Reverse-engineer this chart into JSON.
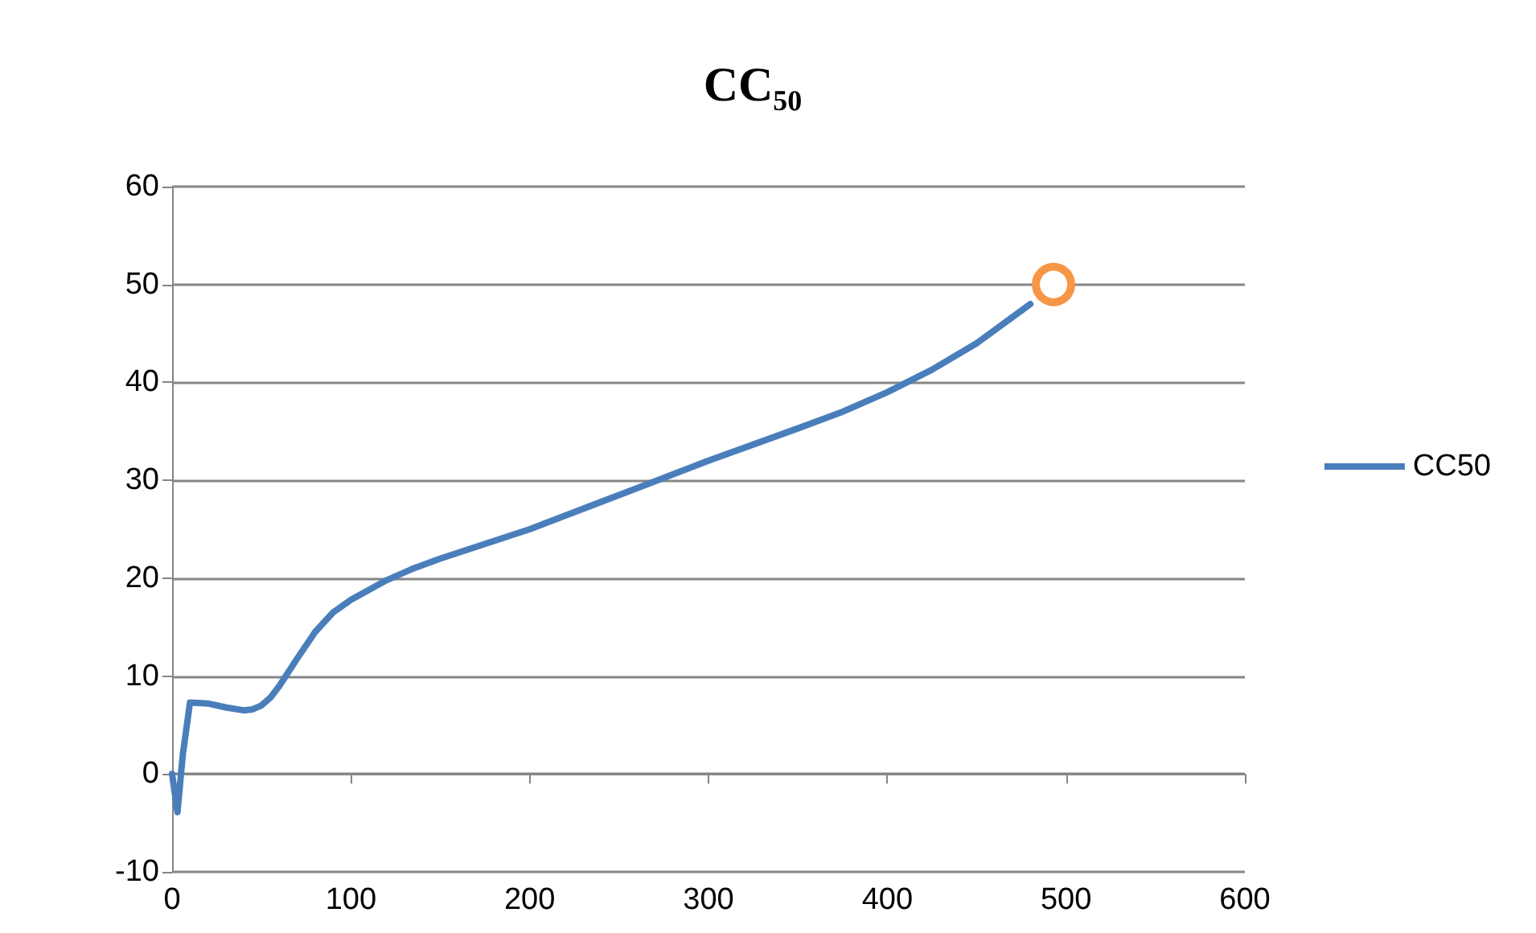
{
  "chart_data": {
    "type": "line",
    "title": "CC₅₀",
    "xlim": [
      0,
      600
    ],
    "xticks": [
      0,
      100,
      200,
      300,
      400,
      500,
      600
    ],
    "ylim": [
      -10,
      60
    ],
    "yticks": [
      -10,
      0,
      10,
      20,
      30,
      40,
      50,
      60
    ],
    "grid": "y",
    "legend": "right",
    "marker": "none",
    "line_style": "solid",
    "series": [
      {
        "name": "CC50",
        "color": "#4a7ebb",
        "x": [
          0,
          3,
          6,
          10,
          20,
          30,
          40,
          45,
          50,
          55,
          60,
          70,
          80,
          90,
          100,
          110,
          120,
          135,
          150,
          175,
          200,
          250,
          300,
          350,
          375,
          400,
          425,
          450,
          480
        ],
        "values": [
          0,
          -3.9,
          2,
          7.3,
          7.2,
          6.8,
          6.5,
          6.6,
          7.0,
          7.8,
          9.0,
          11.8,
          14.5,
          16.5,
          17.8,
          18.8,
          19.8,
          21.0,
          22.0,
          23.5,
          25.0,
          28.5,
          32.0,
          35.3,
          37.0,
          39.0,
          41.3,
          44.0,
          48.0
        ]
      },
      {
        "type": "scatter",
        "marker": "circle",
        "color": "#f79646",
        "x": [
          493
        ],
        "values": [
          50
        ]
      }
    ]
  }
}
